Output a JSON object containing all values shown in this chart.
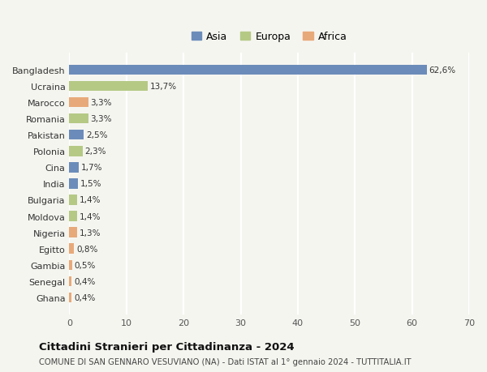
{
  "countries_top_to_bottom": [
    "Bangladesh",
    "Ucraina",
    "Marocco",
    "Romania",
    "Pakistan",
    "Polonia",
    "Cina",
    "India",
    "Bulgaria",
    "Moldova",
    "Nigeria",
    "Egitto",
    "Gambia",
    "Senegal",
    "Ghana"
  ],
  "values_top_to_bottom": [
    62.6,
    13.7,
    3.3,
    3.3,
    2.5,
    2.3,
    1.7,
    1.5,
    1.4,
    1.4,
    1.3,
    0.8,
    0.5,
    0.4,
    0.4
  ],
  "labels_top_to_bottom": [
    "62,6%",
    "13,7%",
    "3,3%",
    "3,3%",
    "2,5%",
    "2,3%",
    "1,7%",
    "1,5%",
    "1,4%",
    "1,4%",
    "1,3%",
    "0,8%",
    "0,5%",
    "0,4%",
    "0,4%"
  ],
  "continents_top_to_bottom": [
    "Asia",
    "Europa",
    "Africa",
    "Europa",
    "Asia",
    "Europa",
    "Asia",
    "Asia",
    "Europa",
    "Europa",
    "Africa",
    "Africa",
    "Africa",
    "Africa",
    "Africa"
  ],
  "colors": {
    "Asia": "#6b8cba",
    "Europa": "#b5c985",
    "Africa": "#e8a97a"
  },
  "title": "Cittadini Stranieri per Cittadinanza - 2024",
  "subtitle": "COMUNE DI SAN GENNARO VESUVIANO (NA) - Dati ISTAT al 1° gennaio 2024 - TUTTITALIA.IT",
  "xlim": [
    0,
    70
  ],
  "xticks": [
    0,
    10,
    20,
    30,
    40,
    50,
    60,
    70
  ],
  "background_color": "#f5f5f0",
  "grid_color": "#ffffff",
  "bar_height": 0.62
}
